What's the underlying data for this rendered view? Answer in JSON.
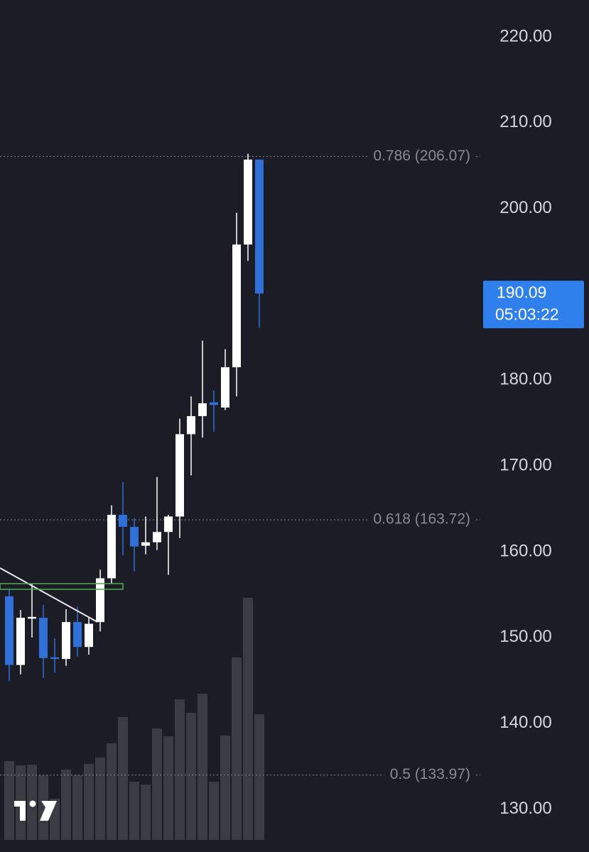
{
  "chart_data": {
    "type": "candlestick",
    "ylim": [
      125,
      224.3
    ],
    "yticks": [
      {
        "value": 220,
        "label": "220.00"
      },
      {
        "value": 210,
        "label": "210.00"
      },
      {
        "value": 200,
        "label": "200.00"
      },
      {
        "value": 180,
        "label": "180.00"
      },
      {
        "value": 170,
        "label": "170.00"
      },
      {
        "value": 160,
        "label": "160.00"
      },
      {
        "value": 150,
        "label": "150.00"
      },
      {
        "value": 140,
        "label": "140.00"
      },
      {
        "value": 130,
        "label": "130.00"
      }
    ],
    "up_color": "#ffffff",
    "down_color": "#2f6fd8",
    "volume_color": "#3b3b44",
    "open": [
      154.8,
      146.8,
      152.2,
      152.3,
      147.7,
      147.5,
      151.8,
      148.9,
      151.8,
      156.9,
      164.3,
      162.9,
      160.7,
      161.1,
      162.3,
      164.1,
      173.7,
      175.8,
      177.4,
      176.8,
      181.5,
      195.8,
      205.7
    ],
    "high": [
      155.6,
      153.2,
      156.3,
      153.8,
      149.9,
      153.3,
      153.6,
      152.3,
      157.9,
      165.4,
      168.1,
      163.9,
      164.1,
      168.7,
      164.3,
      175.5,
      178.1,
      184.6,
      178.8,
      183.6,
      199.5,
      206.4,
      205.7
    ],
    "low": [
      144.9,
      145.7,
      150.0,
      145.3,
      145.9,
      146.7,
      147.8,
      148.0,
      150.7,
      156.3,
      159.6,
      157.7,
      159.7,
      160.2,
      157.3,
      161.6,
      168.9,
      173.3,
      174.0,
      176.5,
      178.1,
      193.9,
      186.1
    ],
    "close": [
      146.8,
      152.3,
      152.4,
      147.6,
      147.5,
      151.8,
      148.9,
      151.6,
      156.9,
      164.3,
      162.9,
      160.6,
      161.1,
      162.3,
      164.1,
      173.7,
      175.8,
      177.3,
      177.1,
      181.5,
      195.8,
      205.7,
      190.09
    ],
    "volume": [
      111,
      105,
      106,
      91,
      58,
      99,
      91,
      107,
      116,
      136,
      173,
      82,
      78,
      157,
      146,
      198,
      179,
      206,
      82,
      147,
      257,
      341,
      177
    ],
    "levels": [
      {
        "label": "0.786 (206.07)",
        "value": 206.07
      },
      {
        "label": "0.618 (163.72)",
        "value": 163.72
      },
      {
        "label": "0.5 (133.97)",
        "value": 133.97
      }
    ],
    "current_price": 190.09,
    "countdown": "05:03:22",
    "badge_color": "#2f80ed"
  }
}
